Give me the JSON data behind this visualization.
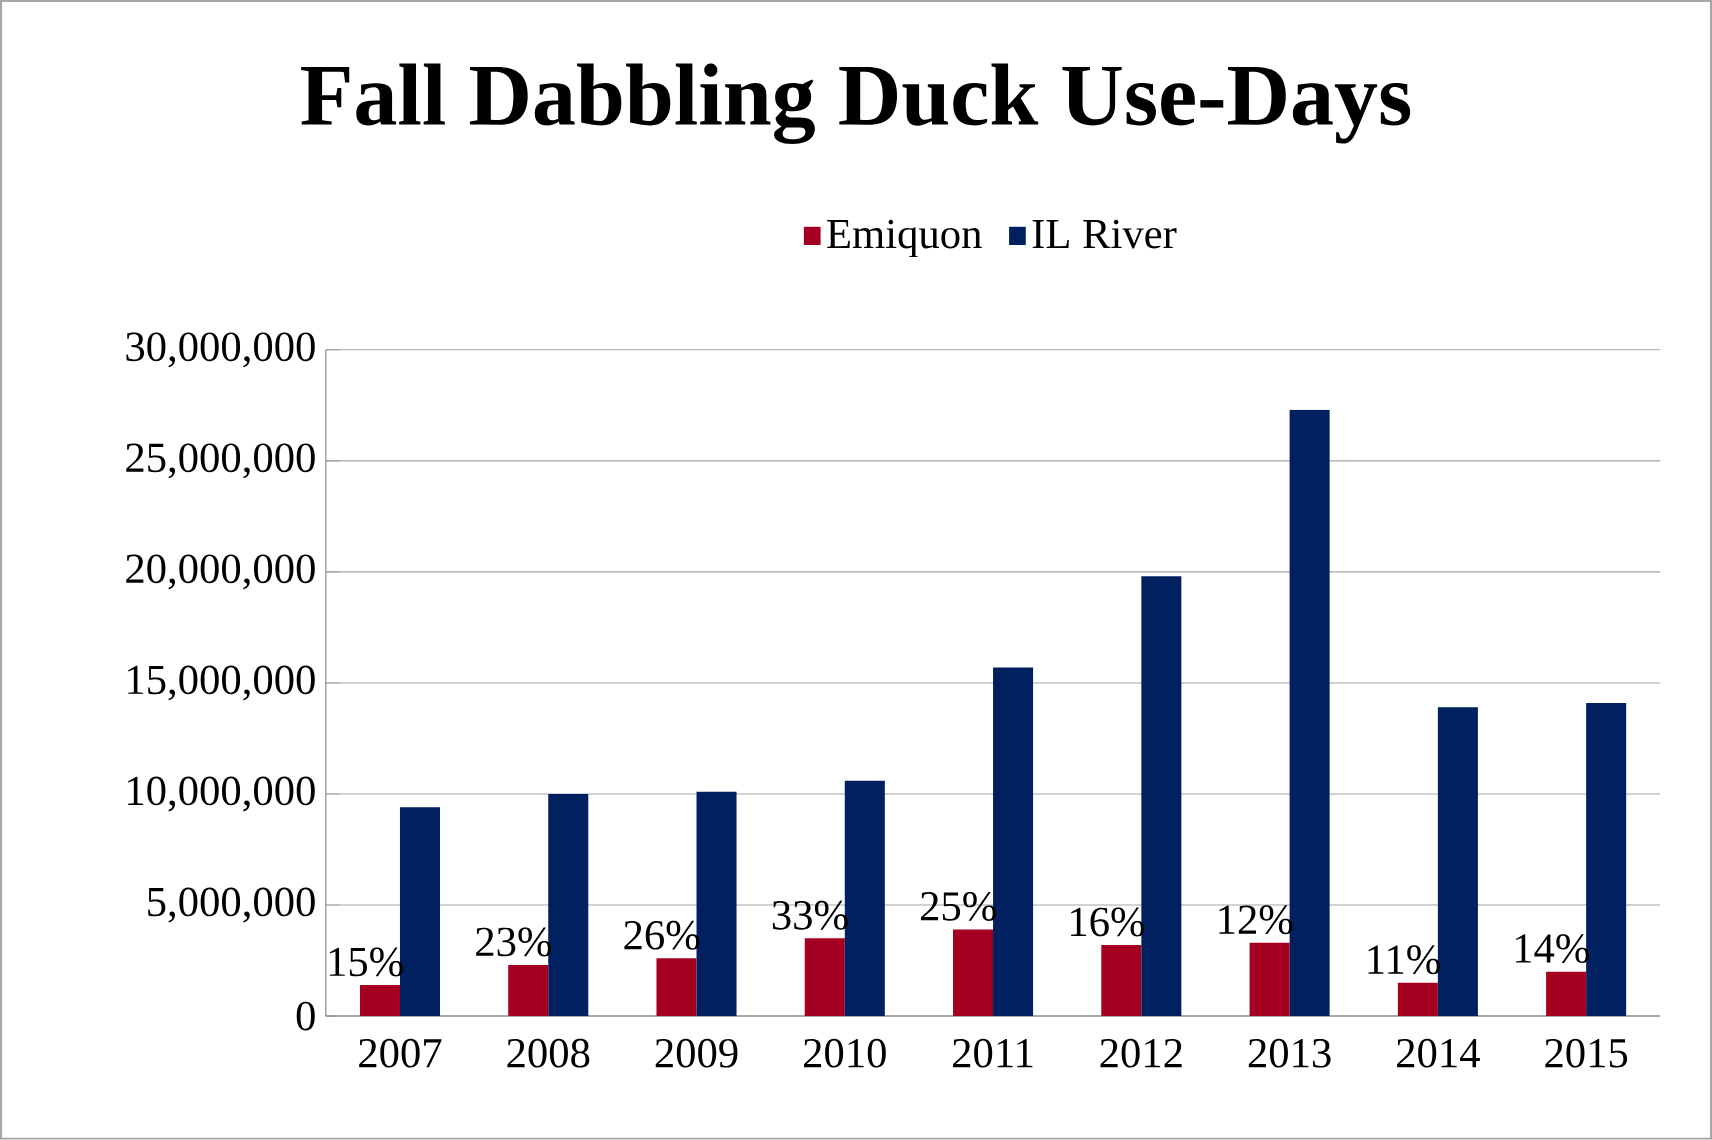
{
  "chart_data": {
    "type": "bar",
    "title": "Fall Dabbling Duck Use-Days",
    "categories": [
      "2007",
      "2008",
      "2009",
      "2010",
      "2011",
      "2012",
      "2013",
      "2014",
      "2015"
    ],
    "series": [
      {
        "name": "Emiquon",
        "color": "#a50021",
        "values": [
          1400000,
          2300000,
          2600000,
          3500000,
          3900000,
          3200000,
          3300000,
          1500000,
          2000000
        ]
      },
      {
        "name": "IL River",
        "color": "#002060",
        "values": [
          9400000,
          10000000,
          10100000,
          10600000,
          15700000,
          19800000,
          27300000,
          13900000,
          14100000
        ]
      }
    ],
    "annotations": [
      {
        "text": "15%",
        "x": "2007",
        "y": 1400000
      },
      {
        "text": "23%",
        "x": "2008",
        "y": 2300000
      },
      {
        "text": "26%",
        "x": "2009",
        "y": 2600000
      },
      {
        "text": "33%",
        "x": "2010",
        "y": 3500000
      },
      {
        "text": "25%",
        "x": "2011",
        "y": 3900000
      },
      {
        "text": "16%",
        "x": "2012",
        "y": 3200000
      },
      {
        "text": "12%",
        "x": "2013",
        "y": 3300000
      },
      {
        "text": "11%",
        "x": "2014",
        "y": 1500000
      },
      {
        "text": "14%",
        "x": "2015",
        "y": 2000000
      }
    ],
    "ylim": [
      0,
      30000000
    ],
    "yticks": [
      {
        "value": 0,
        "label": "0"
      },
      {
        "value": 5000000,
        "label": "5,000,000"
      },
      {
        "value": 10000000,
        "label": "10,000,000"
      },
      {
        "value": 15000000,
        "label": "15,000,000"
      },
      {
        "value": 20000000,
        "label": "20,000,000"
      },
      {
        "value": 25000000,
        "label": "25,000,000"
      },
      {
        "value": 30000000,
        "label": "30,000,000"
      }
    ],
    "grid": "y",
    "legend": "top"
  }
}
